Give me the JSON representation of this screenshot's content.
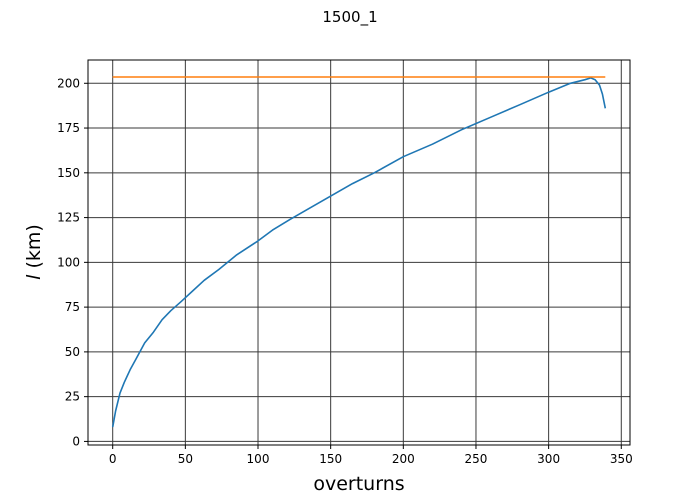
{
  "chart_data": {
    "type": "line",
    "title": "1500_1",
    "xlabel": "overturns",
    "ylabel_italic": "l",
    "ylabel_unit": " (km)",
    "xlim": [
      -17,
      356
    ],
    "ylim": [
      -2,
      213
    ],
    "xticks": [
      0,
      50,
      100,
      150,
      200,
      250,
      300,
      350
    ],
    "yticks": [
      0,
      25,
      50,
      75,
      100,
      125,
      150,
      175,
      200
    ],
    "grid": true,
    "series": [
      {
        "color": "#1f77b4",
        "x": [
          0,
          2,
          5,
          8,
          12,
          16,
          22,
          28,
          34,
          40,
          47,
          55,
          63,
          73,
          85,
          100,
          110,
          122,
          135,
          150,
          165,
          180,
          200,
          220,
          240,
          260,
          280,
          300,
          315,
          325,
          329,
          332,
          335,
          337,
          339
        ],
        "y": [
          8,
          17,
          27,
          33,
          40,
          46,
          55,
          61,
          68,
          73,
          78,
          84,
          90,
          96,
          104,
          112,
          118,
          124,
          130,
          137,
          144,
          150,
          159,
          166,
          174,
          181,
          188,
          195,
          200,
          202,
          203,
          202,
          199,
          194,
          186
        ]
      },
      {
        "color": "#ff7f0e",
        "x": [
          0,
          339
        ],
        "y": [
          203.5,
          203.5
        ]
      }
    ]
  }
}
